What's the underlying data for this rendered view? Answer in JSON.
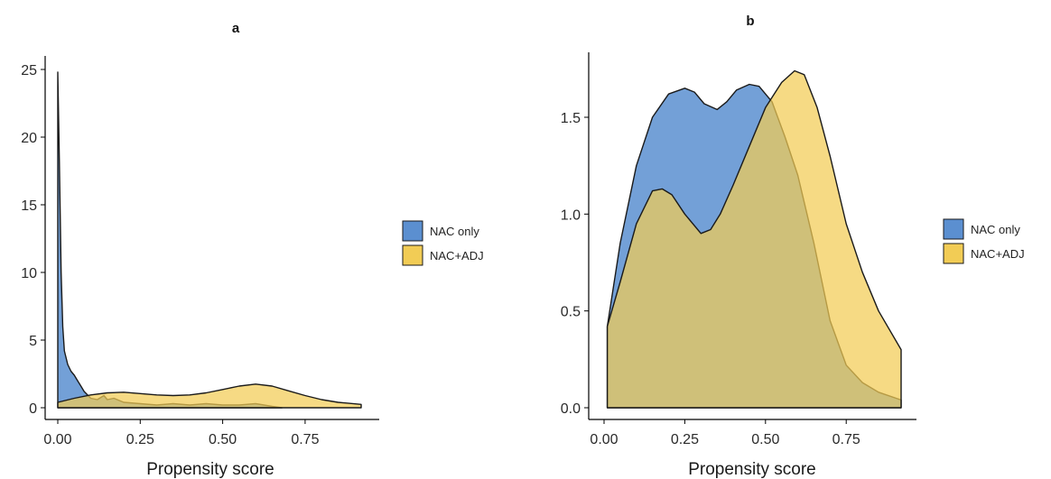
{
  "colors": {
    "nac_only": "#5b8fd0",
    "nac_adj": "#f2cc55",
    "overlap": "#9b9a52",
    "outline": "#1a1a1a"
  },
  "chart_data": [
    {
      "type": "area",
      "title": "a",
      "xlabel": "Propensity score",
      "ylabel": "",
      "xlim": [
        0.0,
        0.92
      ],
      "ylim": [
        0,
        25
      ],
      "x_ticks": [
        "0.00",
        "0.25",
        "0.50",
        "0.75"
      ],
      "y_ticks": [
        "0",
        "5",
        "10",
        "15",
        "20",
        "25"
      ],
      "grid": false,
      "legend_position": "right",
      "series": [
        {
          "name": "NAC only",
          "x": [
            0.0,
            0.005,
            0.01,
            0.015,
            0.02,
            0.03,
            0.04,
            0.05,
            0.06,
            0.07,
            0.08,
            0.1,
            0.12,
            0.14,
            0.15,
            0.17,
            0.2,
            0.25,
            0.3,
            0.35,
            0.4,
            0.45,
            0.5,
            0.55,
            0.6,
            0.65,
            0.68
          ],
          "y": [
            24.8,
            18.0,
            10.0,
            6.0,
            4.2,
            3.2,
            2.7,
            2.4,
            2.0,
            1.6,
            1.2,
            0.7,
            0.6,
            0.9,
            0.6,
            0.7,
            0.4,
            0.3,
            0.2,
            0.3,
            0.2,
            0.3,
            0.2,
            0.2,
            0.3,
            0.1,
            0.0
          ]
        },
        {
          "name": "NAC+ADJ",
          "x": [
            0.0,
            0.05,
            0.1,
            0.15,
            0.2,
            0.25,
            0.3,
            0.35,
            0.4,
            0.45,
            0.5,
            0.55,
            0.6,
            0.65,
            0.7,
            0.75,
            0.8,
            0.85,
            0.92
          ],
          "y": [
            0.4,
            0.7,
            0.95,
            1.1,
            1.15,
            1.05,
            0.95,
            0.9,
            0.95,
            1.1,
            1.35,
            1.6,
            1.75,
            1.6,
            1.25,
            0.9,
            0.6,
            0.4,
            0.25
          ]
        }
      ]
    },
    {
      "type": "area",
      "title": "b",
      "xlabel": "Propensity score",
      "ylabel": "",
      "xlim": [
        0.0,
        0.92
      ],
      "ylim": [
        0,
        1.8
      ],
      "x_ticks": [
        "0.00",
        "0.25",
        "0.50",
        "0.75"
      ],
      "y_ticks": [
        "0.0",
        "0.5",
        "1.0",
        "1.5"
      ],
      "grid": false,
      "legend_position": "right",
      "series": [
        {
          "name": "NAC only",
          "x": [
            0.01,
            0.05,
            0.1,
            0.15,
            0.2,
            0.25,
            0.28,
            0.31,
            0.35,
            0.38,
            0.41,
            0.45,
            0.48,
            0.52,
            0.56,
            0.6,
            0.65,
            0.7,
            0.75,
            0.8,
            0.85,
            0.92
          ],
          "y": [
            0.42,
            0.85,
            1.25,
            1.5,
            1.62,
            1.65,
            1.63,
            1.57,
            1.54,
            1.58,
            1.64,
            1.67,
            1.66,
            1.58,
            1.4,
            1.2,
            0.85,
            0.45,
            0.22,
            0.13,
            0.08,
            0.04
          ]
        },
        {
          "name": "NAC+ADJ",
          "x": [
            0.01,
            0.05,
            0.1,
            0.15,
            0.18,
            0.21,
            0.25,
            0.3,
            0.33,
            0.36,
            0.4,
            0.45,
            0.5,
            0.55,
            0.59,
            0.62,
            0.66,
            0.7,
            0.75,
            0.8,
            0.85,
            0.92
          ],
          "y": [
            0.42,
            0.65,
            0.95,
            1.12,
            1.13,
            1.1,
            1.0,
            0.9,
            0.92,
            1.0,
            1.15,
            1.35,
            1.55,
            1.68,
            1.74,
            1.72,
            1.55,
            1.3,
            0.95,
            0.7,
            0.5,
            0.3
          ]
        }
      ]
    }
  ]
}
